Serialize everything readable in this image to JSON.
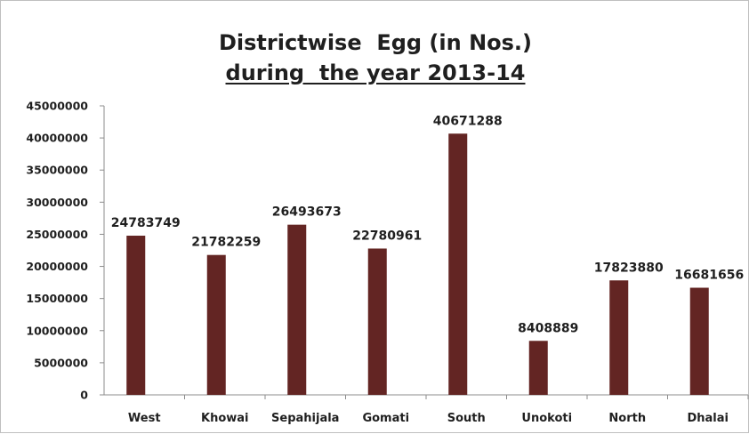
{
  "title": {
    "line1": "Districtwise  Egg (in Nos.)",
    "line2": "during  the year 2013-14"
  },
  "chart_data": {
    "type": "bar",
    "title": "Districtwise  Egg (in Nos.) during  the year 2013-14",
    "xlabel": "",
    "ylabel": "",
    "ylim": [
      0,
      45000000
    ],
    "yticks": [
      0,
      5000000,
      10000000,
      15000000,
      20000000,
      25000000,
      30000000,
      35000000,
      40000000,
      45000000
    ],
    "grid": false,
    "categories": [
      "West",
      "Khowai",
      "Sepahijala",
      "Gomati",
      "South",
      "Unokoti",
      "North",
      "Dhalai"
    ],
    "values": [
      24783749,
      21782259,
      26493673,
      22780961,
      40671288,
      8408889,
      17823880,
      16681656
    ],
    "bar_color": "#632523",
    "data_labels": true
  }
}
